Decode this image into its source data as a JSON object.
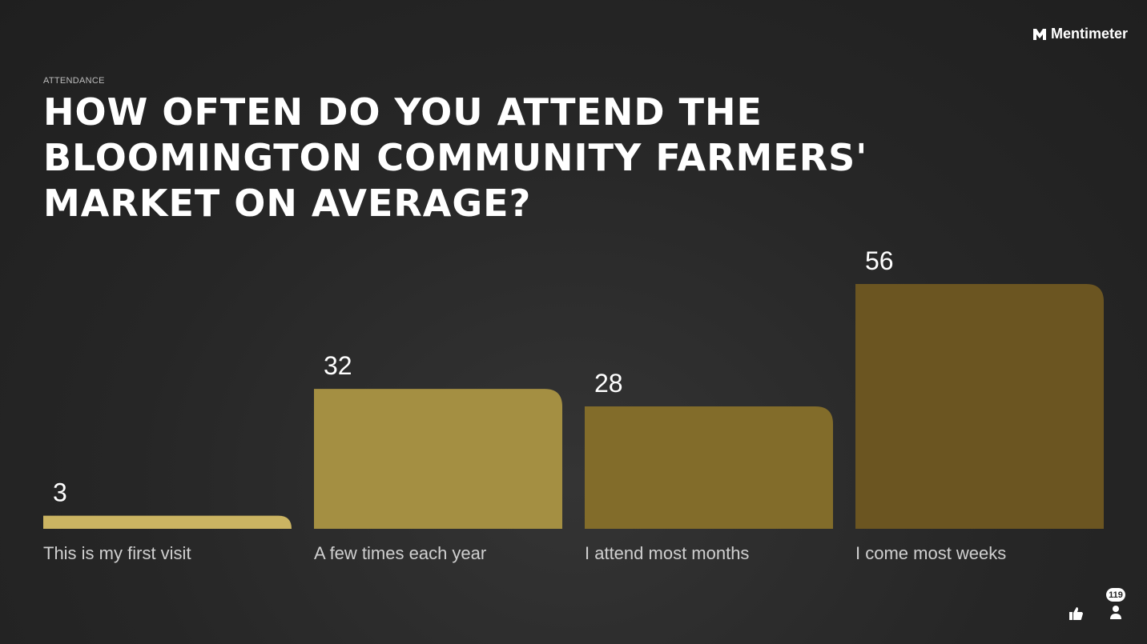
{
  "brand": "Mentimeter",
  "participants": 119,
  "chart_data": {
    "type": "bar",
    "subtitle": "ATTENDANCE",
    "title": "HOW OFTEN DO YOU ATTEND THE BLOOMINGTON COMMUNITY FARMERS' MARKET ON AVERAGE?",
    "categories": [
      "This is my first visit",
      "A few times each year",
      "I attend most months",
      "I come most weeks"
    ],
    "values": [
      3,
      32,
      28,
      56
    ],
    "colors": [
      "#cbb462",
      "#a48f42",
      "#826c2a",
      "#6b5521"
    ]
  }
}
